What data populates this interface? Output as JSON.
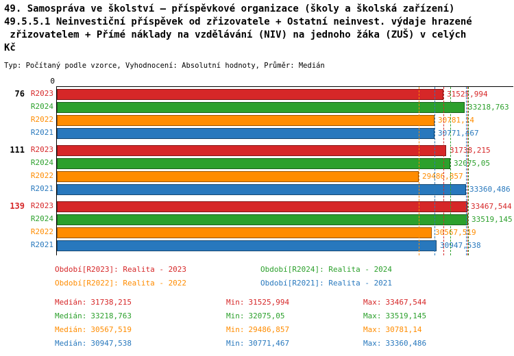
{
  "header": {
    "title_lines": [
      "49. Samospráva ve školství – příspěvkové organizace (školy a školská zařízení)",
      "49.5.5.1 Neinvestiční příspěvek od zřizovatele + Ostatní neinvest. výdaje hrazené",
      " zřizovatelem + Přímé náklady na vzdělávání (NIV) na jednoho žáka (ZUŠ) v celých",
      "Kč"
    ],
    "subtitle": "Typ: Počítaný podle vzorce, Vyhodnocení: Absolutní hodnoty, Průměr: Medián"
  },
  "chart_data": {
    "type": "bar",
    "orientation": "horizontal",
    "title": "49. Samospráva ve školství – příspěvkové organizace (školy a školská zařízení) 49.5.5.1 Neinvestiční příspěvek od zřizovatele + Ostatní neinvest. výdaje hrazené zřizovatelem + Přímé náklady na vzdělávání (NIV) na jednoho žáka (ZUŠ) v celých Kč",
    "origin_label": "0",
    "xmin": 0,
    "unit": "Kč",
    "grid": false,
    "legend_position": "bottom",
    "decimal_separator": ",",
    "markers": "dashed vertical lines at each series min and max",
    "series": [
      {
        "id": "R2023",
        "color": "#d62728",
        "legend": "Období[R2023]: Realita - 2023"
      },
      {
        "id": "R2024",
        "color": "#2ca02c",
        "legend": "Období[R2024]: Realita - 2024"
      },
      {
        "id": "R2022",
        "color": "#ff8c00",
        "legend": "Období[R2022]: Realita - 2022"
      },
      {
        "id": "R2021",
        "color": "#2878bd",
        "legend": "Období[R2021]: Realita - 2021"
      }
    ],
    "categories": [
      "76",
      "111",
      "139"
    ],
    "groups": [
      {
        "label": "76",
        "label_color": "#000000",
        "values": [
          31525.994,
          33218.763,
          30781.14,
          30771.467
        ]
      },
      {
        "label": "111",
        "label_color": "#000000",
        "values": [
          31738.215,
          32075.05,
          29486.857,
          33360.486
        ]
      },
      {
        "label": "139",
        "label_color": "#d62728",
        "values": [
          33467.544,
          33519.145,
          30567.519,
          30947.538
        ]
      }
    ],
    "stat_labels": {
      "median": "Medián:",
      "min": "Min:",
      "max": "Max:"
    },
    "stats": [
      {
        "median": 31738.215,
        "min": 31525.994,
        "max": 33467.544
      },
      {
        "median": 33218.763,
        "min": 32075.05,
        "max": 33519.145
      },
      {
        "median": 30567.519,
        "min": 29486.857,
        "max": 30781.14
      },
      {
        "median": 30947.538,
        "min": 30771.467,
        "max": 33360.486
      }
    ]
  }
}
